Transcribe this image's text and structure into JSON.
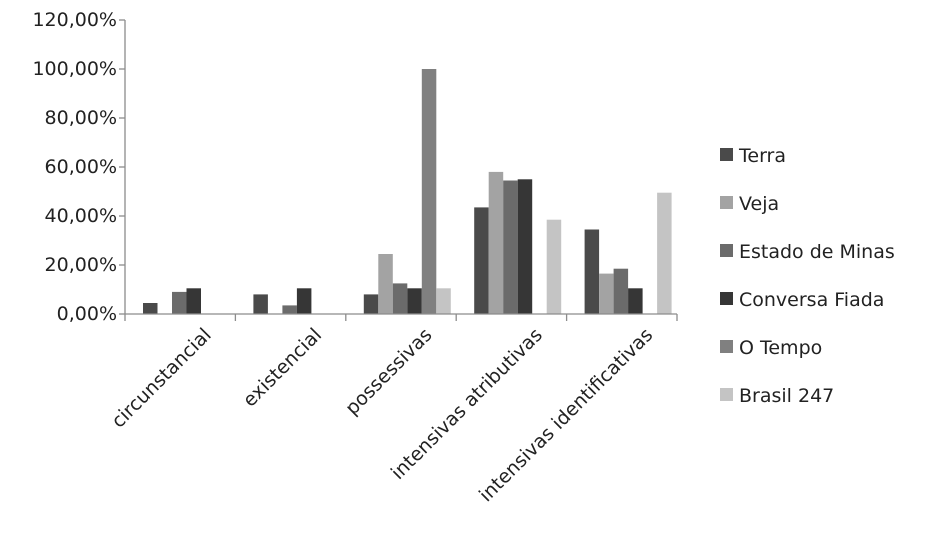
{
  "chart_data": {
    "type": "bar",
    "categories": [
      "circunstancial",
      "existencial",
      "possessivas",
      "intensivas atributivas",
      "intensivas identificativas"
    ],
    "series": [
      {
        "name": "Terra",
        "color": "#4a4a4a",
        "values": [
          4.5,
          8.0,
          8.0,
          43.5,
          34.5
        ]
      },
      {
        "name": "Veja",
        "color": "#a3a3a3",
        "values": [
          0,
          0,
          24.5,
          58.0,
          16.5
        ]
      },
      {
        "name": "Estado de Minas",
        "color": "#6b6b6b",
        "values": [
          9.0,
          3.5,
          12.5,
          54.5,
          18.5
        ]
      },
      {
        "name": "Conversa Fiada",
        "color": "#363636",
        "values": [
          10.5,
          10.5,
          10.5,
          55.0,
          10.5
        ]
      },
      {
        "name": "O Tempo",
        "color": "#808080",
        "values": [
          0,
          0,
          100.0,
          0,
          0
        ]
      },
      {
        "name": "Brasil 247",
        "color": "#c4c4c4",
        "values": [
          0,
          0,
          10.5,
          38.5,
          49.5
        ]
      }
    ],
    "yticks": [
      "0,00%",
      "20,00%",
      "40,00%",
      "60,00%",
      "80,00%",
      "100,00%",
      "120,00%"
    ],
    "ylim": [
      0,
      120
    ],
    "xlabel": "",
    "ylabel": "",
    "title": "",
    "legend_position": "right",
    "grid": false
  }
}
